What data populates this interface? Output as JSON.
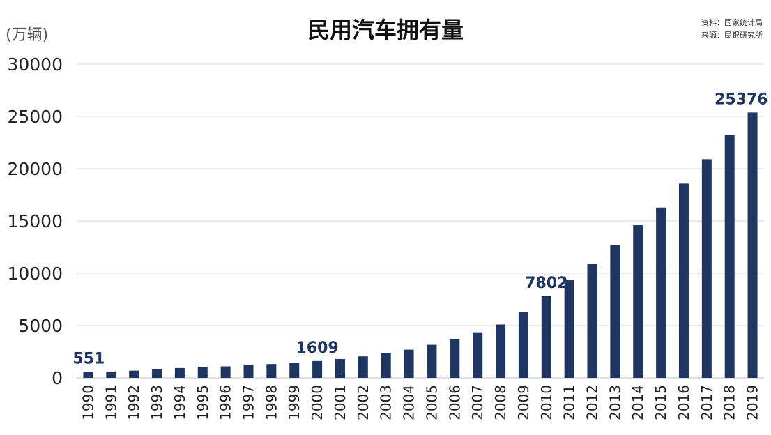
{
  "chart_data": {
    "type": "bar",
    "title": "民用汽车拥有量",
    "unit_label": "(万辆)",
    "source": {
      "line1": "资料：国家统计局",
      "line2": "来源：民银研究所"
    },
    "ylim": [
      0,
      30000
    ],
    "yticks": [
      0,
      5000,
      10000,
      15000,
      20000,
      25000,
      30000
    ],
    "grid": true,
    "bar_color": "#1f3562",
    "label_color": "#1f3562",
    "categories": [
      "1990",
      "1991",
      "1992",
      "1993",
      "1994",
      "1995",
      "1996",
      "1997",
      "1998",
      "1999",
      "2000",
      "2001",
      "2002",
      "2003",
      "2004",
      "2005",
      "2006",
      "2007",
      "2008",
      "2009",
      "2010",
      "2011",
      "2012",
      "2013",
      "2014",
      "2015",
      "2016",
      "2017",
      "2018",
      "2019"
    ],
    "values": [
      551,
      606,
      692,
      817,
      942,
      1040,
      1100,
      1219,
      1319,
      1453,
      1609,
      1802,
      2053,
      2383,
      2694,
      3160,
      3697,
      4358,
      5100,
      6281,
      7802,
      9356,
      10933,
      12670,
      14598,
      16284,
      18575,
      20907,
      23231,
      25376
    ],
    "data_labels": [
      {
        "category": "1990",
        "text": "551"
      },
      {
        "category": "2000",
        "text": "1609"
      },
      {
        "category": "2010",
        "text": "7802"
      },
      {
        "category": "2019",
        "text": "25376"
      }
    ]
  }
}
